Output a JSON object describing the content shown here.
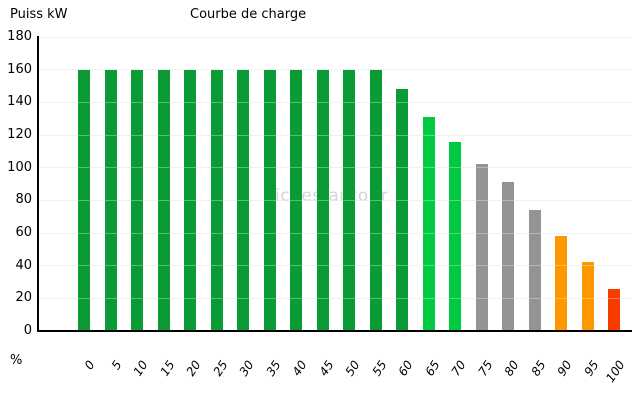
{
  "chart": {
    "title": "Courbe de charge",
    "y_axis_title": "Puiss kW",
    "x_axis_title": "%",
    "watermark": "Fiches-auto.fr"
  },
  "chart_data": {
    "type": "bar",
    "title": "Courbe de charge",
    "ylabel": "Puiss kW",
    "xlabel": "%",
    "categories": [
      "0",
      "5",
      "10",
      "15",
      "20",
      "25",
      "30",
      "35",
      "40",
      "45",
      "50",
      "55",
      "60",
      "65",
      "70",
      "75",
      "80",
      "85",
      "90",
      "95",
      "100"
    ],
    "values": [
      160,
      160,
      160,
      160,
      160,
      160,
      160,
      160,
      160,
      160,
      160,
      160,
      148,
      131,
      116,
      102,
      91,
      74,
      58,
      42,
      26
    ],
    "bar_colors": [
      "#0a9b36",
      "#0a9b36",
      "#0a9b36",
      "#0a9b36",
      "#0a9b36",
      "#0a9b36",
      "#0a9b36",
      "#0a9b36",
      "#0a9b36",
      "#0a9b36",
      "#0a9b36",
      "#0a9b36",
      "#0a9b36",
      "#00ca42",
      "#00ca42",
      "#949494",
      "#949494",
      "#949494",
      "#ff9800",
      "#ff9800",
      "#fa3b00"
    ],
    "y_ticks": [
      0,
      20,
      40,
      60,
      80,
      100,
      120,
      140,
      160,
      180
    ],
    "ylim": [
      0,
      180
    ],
    "grid": true,
    "legend_position": "none",
    "colors": {
      "grid": "#ebebeb",
      "axis": "#000000",
      "text": "#000000",
      "watermark": "#d4d4d4",
      "background": "#ffffff"
    }
  }
}
